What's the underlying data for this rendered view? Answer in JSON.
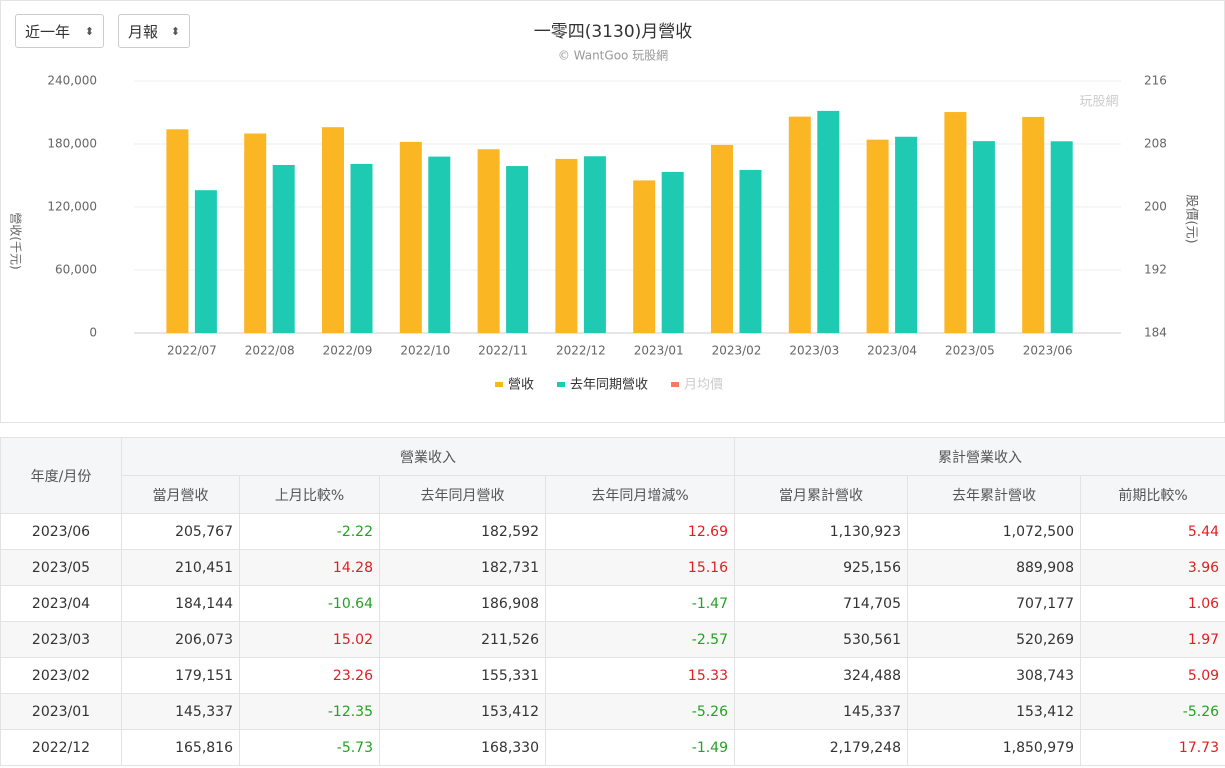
{
  "controls": {
    "period": "近一年",
    "report": "月報"
  },
  "chart_data": {
    "type": "bar",
    "title": "一零四(3130)月營收",
    "subtitle": "© WantGoo 玩股網",
    "watermark": "玩股網",
    "y_label": "營收(千元)",
    "y2_label": "股價(元)",
    "categories": [
      "2022/07",
      "2022/08",
      "2022/09",
      "2022/10",
      "2022/11",
      "2022/12",
      "2023/01",
      "2023/02",
      "2023/03",
      "2023/04",
      "2023/05",
      "2023/06"
    ],
    "series": [
      {
        "name": "營收",
        "color": "#fbb624",
        "values": [
          194000,
          190000,
          196000,
          182000,
          175000,
          165816,
          145337,
          179151,
          206073,
          184144,
          210451,
          205767
        ]
      },
      {
        "name": "去年同期營收",
        "color": "#1fcab3",
        "values": [
          136000,
          160000,
          161000,
          168000,
          159000,
          168330,
          153412,
          155331,
          211526,
          186908,
          182731,
          182592
        ]
      },
      {
        "name": "月均價",
        "color": "#f47c5a",
        "axis": "y2",
        "hidden": true,
        "values": [
          null,
          null,
          null,
          null,
          null,
          null,
          null,
          null,
          null,
          null,
          null,
          null
        ]
      }
    ],
    "ylim": [
      0,
      240000
    ],
    "yticks": [
      0,
      {
        "value": 60000,
        "label": "60,000"
      },
      {
        "value": 120000,
        "label": "120,000"
      },
      {
        "value": 180000,
        "label": "180,000"
      },
      {
        "value": 240000,
        "label": "240,000"
      }
    ],
    "y2lim": [
      184,
      216
    ],
    "y2ticks": [
      184,
      192,
      200,
      208,
      216
    ],
    "grid": true
  },
  "table": {
    "row_header": "年度/月份",
    "groups": [
      "營業收入",
      "累計營業收入"
    ],
    "columns": [
      "當月營收",
      "上月比較%",
      "去年同月營收",
      "去年同月增減%",
      "當月累計營收",
      "去年累計營收",
      "前期比較%"
    ],
    "rows": [
      [
        "2023/06",
        "205,767",
        "-2.22",
        "182,592",
        "12.69",
        "1,130,923",
        "1,072,500",
        "5.44"
      ],
      [
        "2023/05",
        "210,451",
        "14.28",
        "182,731",
        "15.16",
        "925,156",
        "889,908",
        "3.96"
      ],
      [
        "2023/04",
        "184,144",
        "-10.64",
        "186,908",
        "-1.47",
        "714,705",
        "707,177",
        "1.06"
      ],
      [
        "2023/03",
        "206,073",
        "15.02",
        "211,526",
        "-2.57",
        "530,561",
        "520,269",
        "1.97"
      ],
      [
        "2023/02",
        "179,151",
        "23.26",
        "155,331",
        "15.33",
        "324,488",
        "308,743",
        "5.09"
      ],
      [
        "2023/01",
        "145,337",
        "-12.35",
        "153,412",
        "-5.26",
        "145,337",
        "153,412",
        "-5.26"
      ],
      [
        "2022/12",
        "165,816",
        "-5.73",
        "168,330",
        "-1.49",
        "2,179,248",
        "1,850,979",
        "17.73"
      ]
    ]
  }
}
